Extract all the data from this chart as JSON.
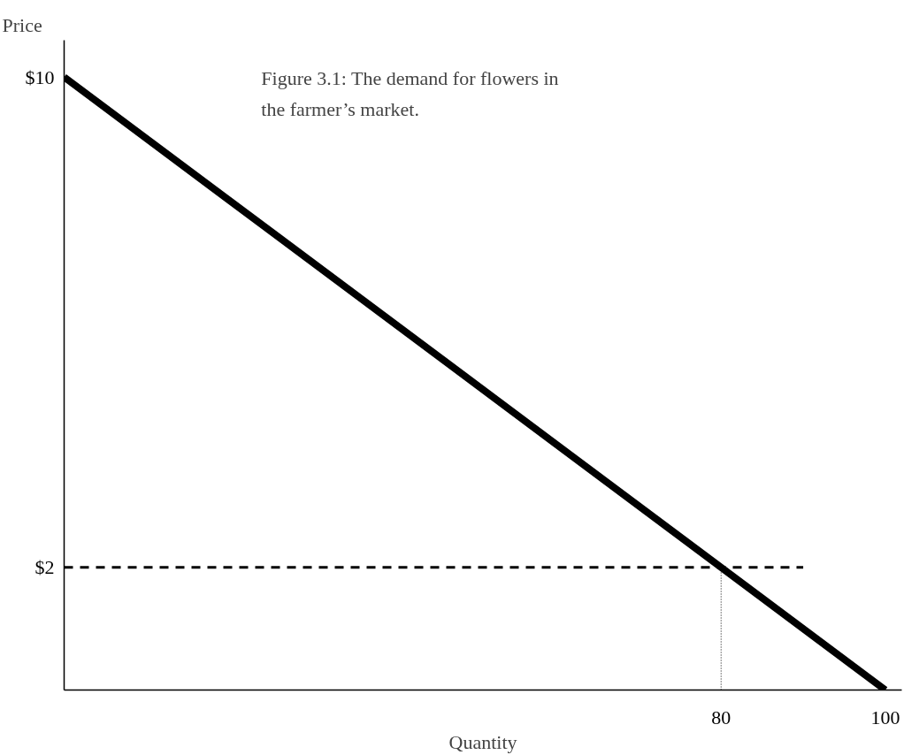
{
  "chart_data": {
    "type": "line",
    "xlabel": "Quantity",
    "ylabel": "Price",
    "annotations": [
      "Figure 3.1: The demand for flowers in the farmer’s market."
    ],
    "xlim": [
      0,
      102
    ],
    "ylim": [
      0,
      10.6
    ],
    "xticks": [
      80,
      100
    ],
    "yticks": [
      {
        "value": 2,
        "label": "$2"
      },
      {
        "value": 10,
        "label": "$10"
      }
    ],
    "grid": false,
    "marker": "none",
    "series": [
      {
        "color": "#000000",
        "x": [
          0,
          100
        ],
        "values": [
          10,
          0
        ],
        "line_style": "solid"
      },
      {
        "color": "#000000",
        "x": [
          0,
          90
        ],
        "values": [
          2,
          2
        ],
        "line_style": "dashed"
      },
      {
        "color": "#000000",
        "x": [
          80,
          80
        ],
        "values": [
          0,
          2
        ],
        "line_style": "dotted"
      }
    ]
  }
}
